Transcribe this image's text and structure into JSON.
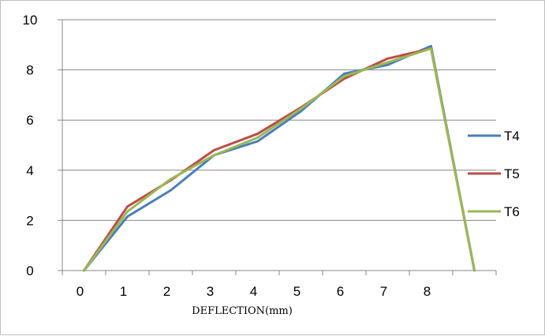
{
  "chart_data": {
    "type": "line",
    "xlabel": "DEFLECTION(mm)",
    "ylabel": "",
    "title": "",
    "x_tick_labels": [
      "0",
      "1",
      "2",
      "3",
      "4",
      "5",
      "6",
      "7",
      "8",
      ""
    ],
    "ylim": [
      0,
      10
    ],
    "y_ticks": [
      0,
      2,
      4,
      6,
      8,
      10
    ],
    "grid": "horizontal",
    "legend_position": "right",
    "series": [
      {
        "name": "T4",
        "color": "#4a7ebb",
        "values": [
          0,
          2.15,
          3.2,
          4.6,
          5.15,
          6.35,
          7.85,
          8.2,
          8.95,
          0
        ]
      },
      {
        "name": "T5",
        "color": "#be4b48",
        "values": [
          0,
          2.55,
          3.6,
          4.8,
          5.45,
          6.5,
          7.65,
          8.45,
          8.85,
          0
        ]
      },
      {
        "name": "T6",
        "color": "#98b954",
        "values": [
          0,
          2.35,
          3.65,
          4.6,
          5.3,
          6.45,
          7.75,
          8.3,
          8.85,
          0
        ]
      }
    ]
  }
}
